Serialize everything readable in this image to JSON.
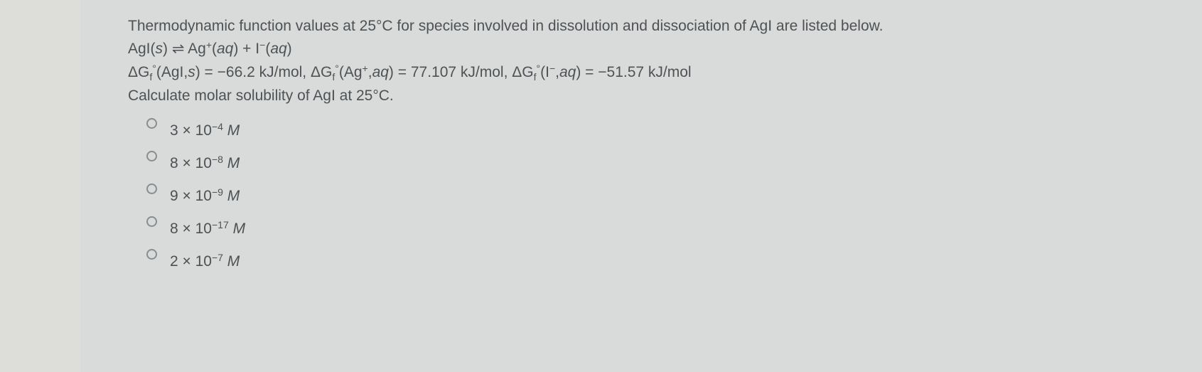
{
  "question": {
    "line1": "Thermodynamic function values at 25°C for species involved in dissolution and dissociation of AgI are listed below.",
    "line2_html": "AgI(<span class='ital'>s</span>) ⇌ Ag<span class='sup'>+</span>(<span class='ital'>aq</span>) + I<span class='sup'>−</span>(<span class='ital'>aq</span>)",
    "line3_html": "ΔG<span class='sub'>f</span><span class='sup'>°</span>(AgI,<span class='ital'>s</span>) = −66.2 kJ/mol, ΔG<span class='sub'>f</span><span class='sup'>°</span>(Ag<span class='sup'>+</span>,<span class='ital'>aq</span>) = 77.107 kJ/mol, ΔG<span class='sub'>f</span><span class='sup'>°</span>(I<span class='sup'>−</span>,<span class='ital'>aq</span>) = −51.57 kJ/mol",
    "line4": "Calculate molar solubility of AgI at 25°C."
  },
  "options": [
    {
      "html": "3 × 10<span class='sup'>−4</span> <span class='ital'>M</span>"
    },
    {
      "html": "8 × 10<span class='sup'>−8</span> <span class='ital'>M</span>"
    },
    {
      "html": "9 × 10<span class='sup'>−9</span> <span class='ital'>M</span>"
    },
    {
      "html": "8 × 10<span class='sup'>−17</span> <span class='ital'>M</span>"
    },
    {
      "html": "2 × 10<span class='sup'>−7</span> <span class='ital'>M</span>"
    }
  ],
  "style": {
    "background_color": "#d8dbda",
    "text_color": "#4e5154",
    "radio_border_color": "#8a8d8f",
    "font_size_pt": 16,
    "option_font_size_pt": 16
  }
}
